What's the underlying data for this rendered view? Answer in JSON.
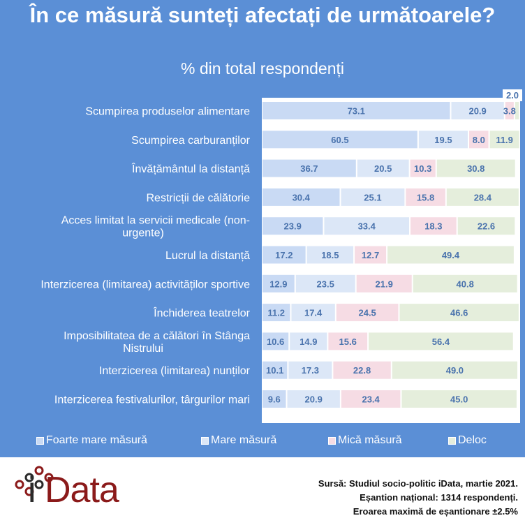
{
  "header": {
    "title": "În ce măsură sunteți afectați de următoarele?",
    "subtitle": "% din total respondenți"
  },
  "chart_data": {
    "type": "bar",
    "orientation": "horizontal",
    "stacked": true,
    "title": "În ce măsură sunteți afectați de următoarele?",
    "subtitle": "% din total respondenți",
    "xlim": [
      0,
      100
    ],
    "legend_position": "bottom",
    "categories": [
      "Scumpirea produselor alimentare",
      "Scumpirea carburanților",
      "Învățământul la distanță",
      "Restricții de călătorie",
      "Acces limitat la servicii medicale (non-urgente)",
      "Lucrul la distanță",
      "Interzicerea (limitarea) activităților sportive",
      "Închiderea teatrelor",
      "Imposibilitatea de a călători în Stânga Nistrului",
      "Interzicerea (limitarea) nunților",
      "Interzicerea festivalurilor, târgurilor mari"
    ],
    "category_lines": [
      [
        "Scumpirea produselor alimentare"
      ],
      [
        "Scumpirea carburanților"
      ],
      [
        "Învățământul la distanță"
      ],
      [
        "Restricții de călătorie"
      ],
      [
        "Acces limitat la servicii medicale (non-",
        "urgente)"
      ],
      [
        "Lucrul la distanță"
      ],
      [
        "Interzicerea (limitarea) activităților sportive"
      ],
      [
        "Închiderea teatrelor"
      ],
      [
        "Imposibilitatea de a călători în Stânga",
        "Nistrului"
      ],
      [
        "Interzicerea (limitarea) nunților"
      ],
      [
        "Interzicerea festivalurilor, târgurilor mari"
      ]
    ],
    "series": [
      {
        "name": "Foarte mare măsură",
        "color": "#c9daf4",
        "values": [
          73.1,
          60.5,
          36.7,
          30.4,
          23.9,
          17.2,
          12.9,
          11.2,
          10.6,
          10.1,
          9.6
        ]
      },
      {
        "name": "Mare măsură",
        "color": "#dce7f7",
        "values": [
          20.9,
          19.5,
          20.5,
          25.1,
          33.4,
          18.5,
          23.5,
          17.4,
          14.9,
          17.3,
          20.9
        ]
      },
      {
        "name": "Mică măsură",
        "color": "#f6dce4",
        "values": [
          3.8,
          8.0,
          10.3,
          15.8,
          18.3,
          12.7,
          21.9,
          24.5,
          15.6,
          22.8,
          23.4
        ]
      },
      {
        "name": "Deloc",
        "color": "#e5eedc",
        "values": [
          2.0,
          11.9,
          30.8,
          28.4,
          22.6,
          49.4,
          40.8,
          46.6,
          56.4,
          49.0,
          45.0
        ]
      }
    ]
  },
  "legend": {
    "items": [
      {
        "label": "Foarte mare măsură",
        "color": "#c9daf4"
      },
      {
        "label": "Mare măsură",
        "color": "#dce7f7"
      },
      {
        "label": "Mică măsură",
        "color": "#f6dce4"
      },
      {
        "label": "Deloc",
        "color": "#e5eedc"
      }
    ]
  },
  "logo": {
    "text_i": "i",
    "text_rest": "Data"
  },
  "source": {
    "line1": "Sursă: Studiul socio-politic iData, martie 2021.",
    "line2": "Eșantion național: 1314 respondenți.",
    "line3": "Eroarea maximă de eșantionare ±2.5%"
  },
  "colors": {
    "background": "#5b8fd6",
    "value_text": "#4a73ad",
    "logo_brand": "#8b1a1a"
  }
}
